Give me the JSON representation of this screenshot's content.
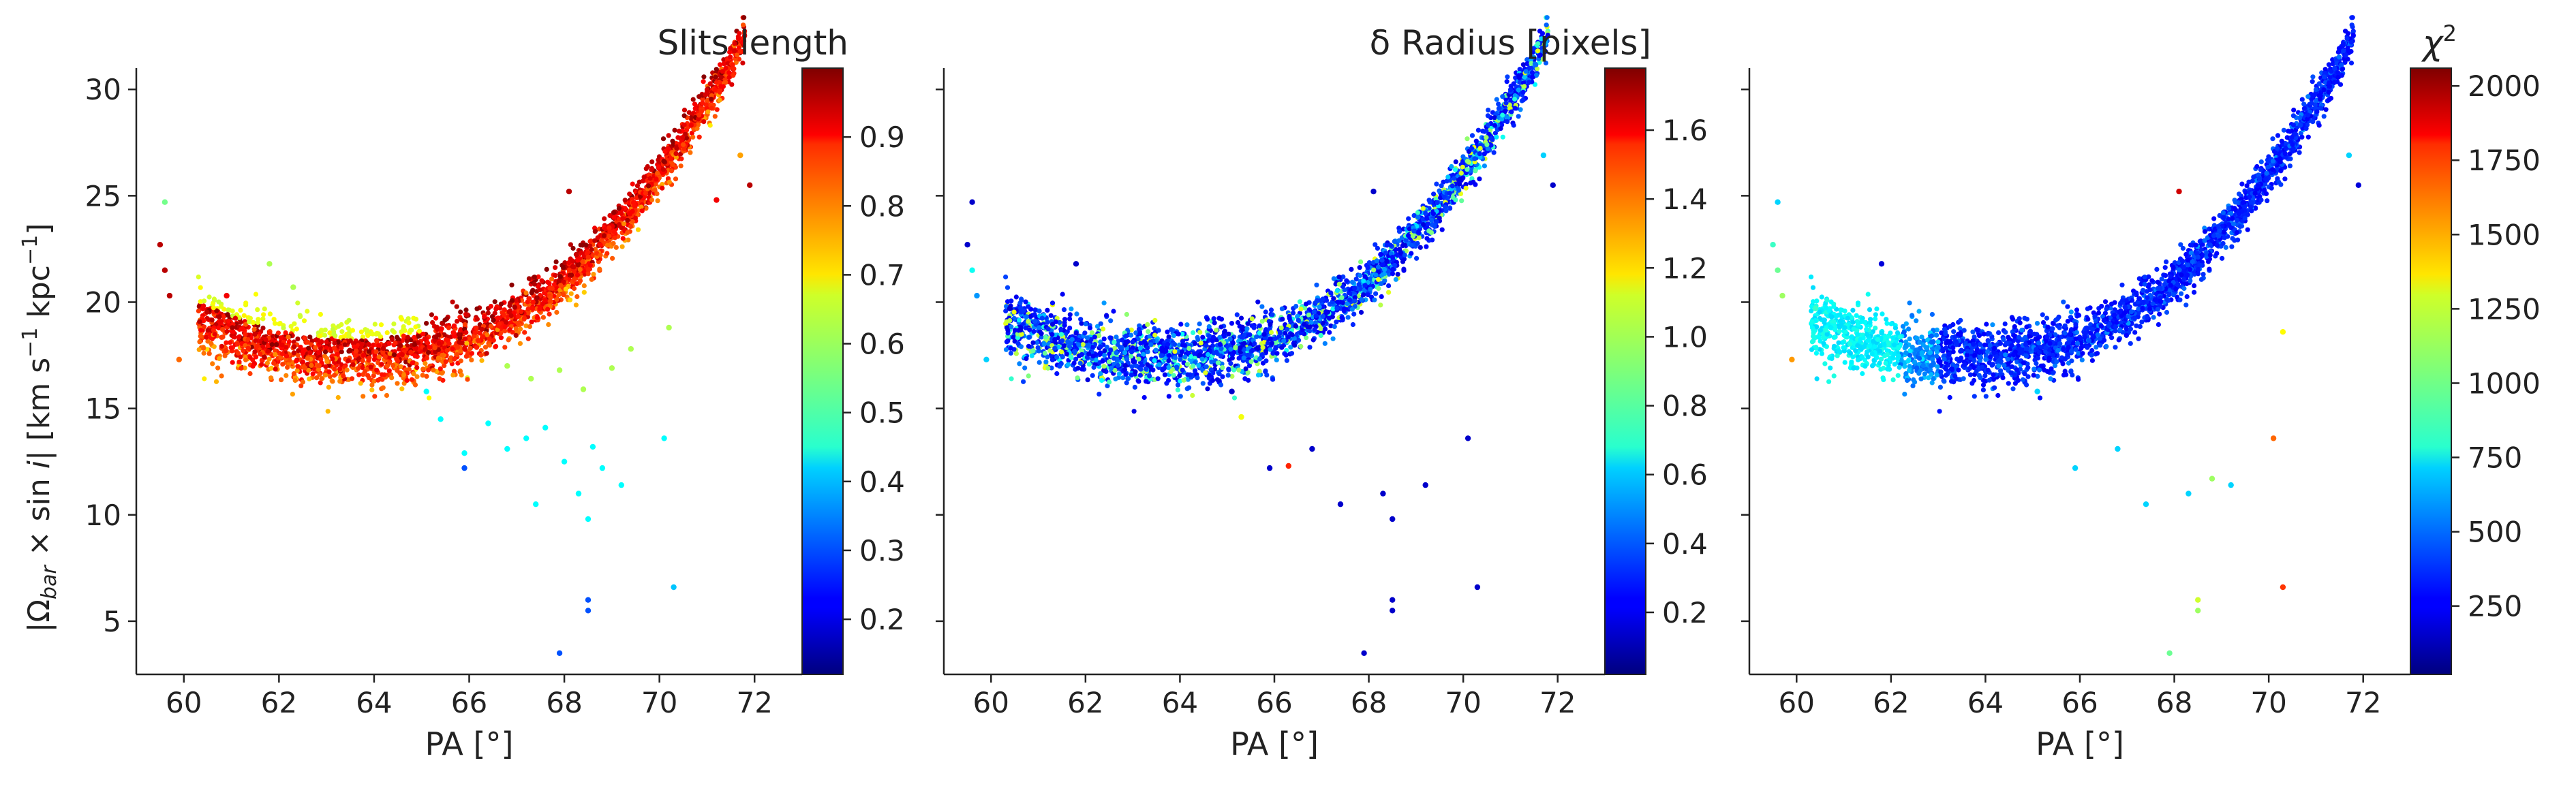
{
  "figure": {
    "shared_ylabel_parts": {
      "abs_open": "|Ω",
      "sub": "bar",
      "times": " × sin ",
      "i": "i",
      "abs_close": "|",
      "units": "  [km s",
      "exp": "−1",
      "units2": " kpc",
      "exp2": "−1",
      "units3": "]"
    }
  },
  "chart_data": [
    {
      "type": "scatter",
      "panel": "left",
      "colorbar_title": "Slits length",
      "xlabel": "PA [°]",
      "ylabel": "|Ωbar × sin i|  [km s⁻¹ kpc⁻¹]",
      "xlim": [
        59,
        73
      ],
      "ylim": [
        2.5,
        31
      ],
      "xticks": [
        "60",
        "62",
        "64",
        "66",
        "68",
        "70",
        "72"
      ],
      "yticks": [
        "5",
        "10",
        "15",
        "20",
        "25",
        "30"
      ],
      "colorbar": {
        "colormap": "jet",
        "range": [
          0.12,
          1.0
        ],
        "ticks": [
          "0.2",
          "0.3",
          "0.4",
          "0.5",
          "0.6",
          "0.7",
          "0.8",
          "0.9"
        ]
      },
      "grid": false,
      "legend": "none",
      "main_band": {
        "x_range": [
          60.2,
          71.9
        ],
        "description_curve": "y ≈ 17.3 + 0.165·(x−63.6)² on the low side, rising to ~27 at x≈72"
      },
      "scatter_points": [
        {
          "x": 59.6,
          "y": 24.7,
          "c": 0.55
        },
        {
          "x": 59.5,
          "y": 22.7,
          "c": 0.95
        },
        {
          "x": 59.6,
          "y": 21.5,
          "c": 0.95
        },
        {
          "x": 59.7,
          "y": 20.3,
          "c": 0.95
        },
        {
          "x": 59.9,
          "y": 17.3,
          "c": 0.8
        },
        {
          "x": 60.4,
          "y": 19.7,
          "c": 0.9
        },
        {
          "x": 60.9,
          "y": 20.3,
          "c": 0.9
        },
        {
          "x": 61.8,
          "y": 21.8,
          "c": 0.6
        },
        {
          "x": 62.3,
          "y": 20.7,
          "c": 0.6
        },
        {
          "x": 68.1,
          "y": 25.2,
          "c": 0.95
        },
        {
          "x": 65.1,
          "y": 15.8,
          "c": 0.45
        },
        {
          "x": 65.4,
          "y": 14.5,
          "c": 0.45
        },
        {
          "x": 65.9,
          "y": 12.9,
          "c": 0.45
        },
        {
          "x": 65.9,
          "y": 12.2,
          "c": 0.3
        },
        {
          "x": 66.4,
          "y": 14.3,
          "c": 0.45
        },
        {
          "x": 66.8,
          "y": 13.1,
          "c": 0.45
        },
        {
          "x": 67.2,
          "y": 13.6,
          "c": 0.45
        },
        {
          "x": 67.4,
          "y": 10.5,
          "c": 0.45
        },
        {
          "x": 67.6,
          "y": 14.1,
          "c": 0.45
        },
        {
          "x": 68.0,
          "y": 12.5,
          "c": 0.45
        },
        {
          "x": 68.3,
          "y": 11.0,
          "c": 0.45
        },
        {
          "x": 68.5,
          "y": 9.8,
          "c": 0.45
        },
        {
          "x": 68.6,
          "y": 13.2,
          "c": 0.45
        },
        {
          "x": 68.8,
          "y": 12.2,
          "c": 0.45
        },
        {
          "x": 69.2,
          "y": 11.4,
          "c": 0.45
        },
        {
          "x": 70.1,
          "y": 13.6,
          "c": 0.45
        },
        {
          "x": 70.3,
          "y": 6.6,
          "c": 0.4
        },
        {
          "x": 68.5,
          "y": 6.0,
          "c": 0.3
        },
        {
          "x": 68.5,
          "y": 5.5,
          "c": 0.3
        },
        {
          "x": 67.9,
          "y": 3.5,
          "c": 0.3
        },
        {
          "x": 66.8,
          "y": 17.0,
          "c": 0.6
        },
        {
          "x": 67.3,
          "y": 16.4,
          "c": 0.6
        },
        {
          "x": 67.9,
          "y": 16.8,
          "c": 0.6
        },
        {
          "x": 68.4,
          "y": 15.9,
          "c": 0.6
        },
        {
          "x": 69.0,
          "y": 16.9,
          "c": 0.6
        },
        {
          "x": 69.4,
          "y": 17.8,
          "c": 0.6
        },
        {
          "x": 70.2,
          "y": 18.8,
          "c": 0.6
        },
        {
          "x": 71.2,
          "y": 24.8,
          "c": 0.9
        },
        {
          "x": 71.7,
          "y": 26.9,
          "c": 0.75
        },
        {
          "x": 71.9,
          "y": 25.5,
          "c": 0.95
        }
      ]
    },
    {
      "type": "scatter",
      "panel": "middle",
      "colorbar_title": "δ Radius [pixels]",
      "xlabel": "PA [°]",
      "xlim": [
        59,
        73
      ],
      "ylim": [
        2.5,
        31
      ],
      "xticks": [
        "60",
        "62",
        "64",
        "66",
        "68",
        "70",
        "72"
      ],
      "colorbar": {
        "colormap": "jet",
        "range": [
          0.02,
          1.78
        ],
        "ticks": [
          "0.2",
          "0.4",
          "0.6",
          "0.8",
          "1.0",
          "1.2",
          "1.4",
          "1.6"
        ]
      },
      "grid": false,
      "legend": "none",
      "scatter_points": [
        {
          "x": 59.6,
          "y": 24.7,
          "c": 0.15
        },
        {
          "x": 59.5,
          "y": 22.7,
          "c": 0.15
        },
        {
          "x": 59.6,
          "y": 21.5,
          "c": 0.7
        },
        {
          "x": 59.7,
          "y": 20.3,
          "c": 0.5
        },
        {
          "x": 59.9,
          "y": 17.3,
          "c": 0.6
        },
        {
          "x": 60.4,
          "y": 19.7,
          "c": 0.15
        },
        {
          "x": 61.8,
          "y": 21.8,
          "c": 0.15
        },
        {
          "x": 68.1,
          "y": 25.2,
          "c": 0.15
        },
        {
          "x": 65.1,
          "y": 15.8,
          "c": 0.15
        },
        {
          "x": 65.9,
          "y": 12.2,
          "c": 0.15
        },
        {
          "x": 66.3,
          "y": 12.3,
          "c": 1.5
        },
        {
          "x": 66.8,
          "y": 13.1,
          "c": 0.15
        },
        {
          "x": 67.4,
          "y": 10.5,
          "c": 0.15
        },
        {
          "x": 68.3,
          "y": 11.0,
          "c": 0.15
        },
        {
          "x": 68.5,
          "y": 9.8,
          "c": 0.15
        },
        {
          "x": 69.2,
          "y": 11.4,
          "c": 0.15
        },
        {
          "x": 70.1,
          "y": 13.6,
          "c": 0.15
        },
        {
          "x": 70.3,
          "y": 6.6,
          "c": 0.15
        },
        {
          "x": 68.5,
          "y": 6.0,
          "c": 0.15
        },
        {
          "x": 68.5,
          "y": 5.5,
          "c": 0.15
        },
        {
          "x": 67.9,
          "y": 3.5,
          "c": 0.15
        },
        {
          "x": 71.7,
          "y": 26.9,
          "c": 0.6
        },
        {
          "x": 71.9,
          "y": 25.5,
          "c": 0.15
        },
        {
          "x": 65.3,
          "y": 14.6,
          "c": 1.1
        }
      ]
    },
    {
      "type": "scatter",
      "panel": "right",
      "colorbar_title": "χ²",
      "xlabel": "PA [°]",
      "xlim": [
        59,
        73
      ],
      "ylim": [
        2.5,
        31
      ],
      "xticks": [
        "60",
        "62",
        "64",
        "66",
        "68",
        "70",
        "72"
      ],
      "colorbar": {
        "colormap": "jet",
        "range": [
          20,
          2060
        ],
        "ticks": [
          "250",
          "500",
          "750",
          "1000",
          "1250",
          "1500",
          "1750",
          "2000"
        ]
      },
      "grid": false,
      "legend": "none",
      "scatter_points": [
        {
          "x": 59.6,
          "y": 24.7,
          "c": 700
        },
        {
          "x": 59.5,
          "y": 22.7,
          "c": 900
        },
        {
          "x": 59.6,
          "y": 21.5,
          "c": 1000
        },
        {
          "x": 59.7,
          "y": 20.3,
          "c": 1100
        },
        {
          "x": 59.9,
          "y": 17.3,
          "c": 1500
        },
        {
          "x": 60.4,
          "y": 19.7,
          "c": 900
        },
        {
          "x": 61.8,
          "y": 21.8,
          "c": 200
        },
        {
          "x": 68.1,
          "y": 25.2,
          "c": 1900
        },
        {
          "x": 65.1,
          "y": 15.8,
          "c": 700
        },
        {
          "x": 65.9,
          "y": 12.2,
          "c": 700
        },
        {
          "x": 66.8,
          "y": 13.1,
          "c": 700
        },
        {
          "x": 67.4,
          "y": 10.5,
          "c": 700
        },
        {
          "x": 68.3,
          "y": 11.0,
          "c": 700
        },
        {
          "x": 68.8,
          "y": 11.7,
          "c": 1100
        },
        {
          "x": 69.2,
          "y": 11.4,
          "c": 700
        },
        {
          "x": 70.1,
          "y": 13.6,
          "c": 1600
        },
        {
          "x": 70.3,
          "y": 6.6,
          "c": 1700
        },
        {
          "x": 68.5,
          "y": 6.0,
          "c": 1200
        },
        {
          "x": 68.5,
          "y": 5.5,
          "c": 1100
        },
        {
          "x": 67.9,
          "y": 3.5,
          "c": 1000
        },
        {
          "x": 70.3,
          "y": 18.6,
          "c": 1300
        },
        {
          "x": 71.7,
          "y": 26.9,
          "c": 700
        },
        {
          "x": 71.9,
          "y": 25.5,
          "c": 200
        }
      ]
    }
  ]
}
